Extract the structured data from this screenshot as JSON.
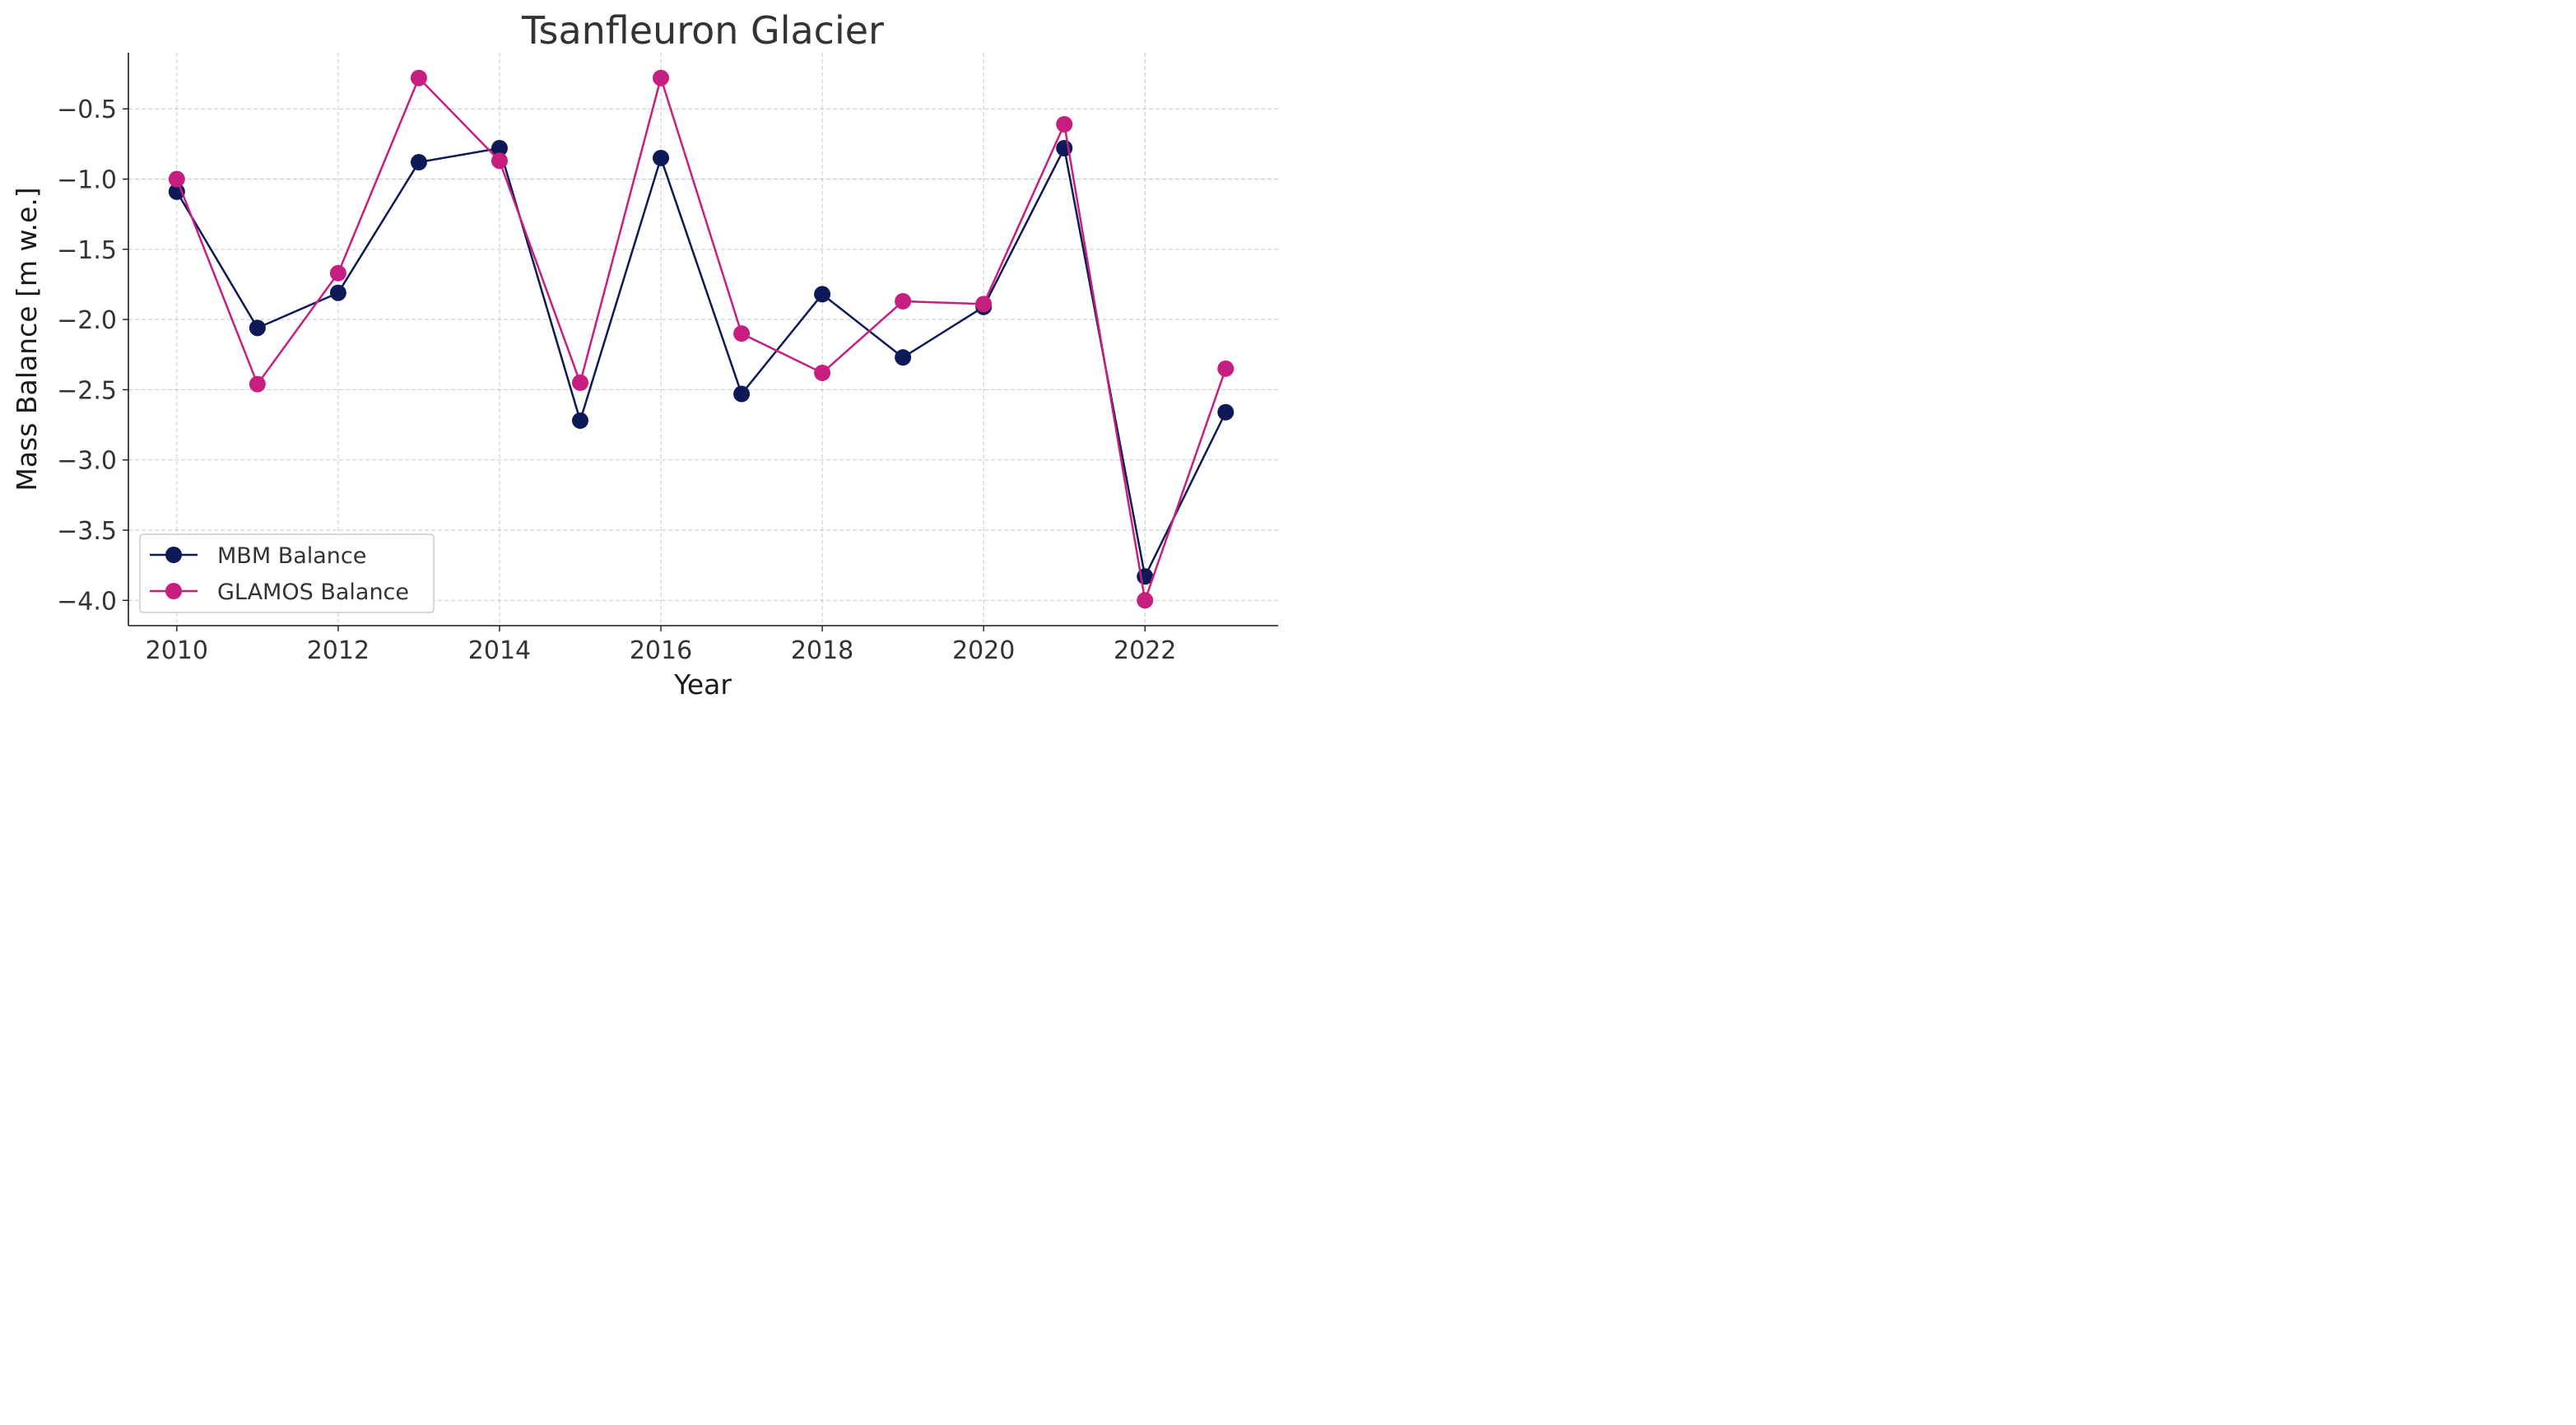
{
  "chart_data": {
    "type": "line",
    "title": "Tsanfleuron Glacier",
    "xlabel": "Year",
    "ylabel": "Mass Balance [m w.e.]",
    "x": [
      2010,
      2011,
      2012,
      2013,
      2014,
      2015,
      2016,
      2017,
      2018,
      2019,
      2020,
      2021,
      2022,
      2023
    ],
    "xlim": [
      2009.4,
      2023.65
    ],
    "ylim": [
      -4.18,
      -0.1
    ],
    "xticks": [
      2010,
      2012,
      2014,
      2016,
      2018,
      2020,
      2022
    ],
    "xtick_labels": [
      "2010",
      "2012",
      "2014",
      "2016",
      "2018",
      "2020",
      "2022"
    ],
    "yticks": [
      -4.0,
      -3.5,
      -3.0,
      -2.5,
      -2.0,
      -1.5,
      -1.0,
      -0.5
    ],
    "ytick_labels": [
      "−4.0",
      "−3.5",
      "−3.0",
      "−2.5",
      "−2.0",
      "−1.5",
      "−1.0",
      "−0.5"
    ],
    "grid": true,
    "legend_position": "lower-left",
    "series": [
      {
        "name": "MBM Balance",
        "color": "#0d1a57",
        "marker": "circle",
        "values": [
          -1.09,
          -2.06,
          -1.81,
          -0.88,
          -0.78,
          -2.72,
          -0.85,
          -2.53,
          -1.82,
          -2.27,
          -1.91,
          -0.78,
          -3.83,
          -2.66
        ]
      },
      {
        "name": "GLAMOS Balance",
        "color": "#c71f80",
        "marker": "circle",
        "values": [
          -1.0,
          -2.46,
          -1.67,
          -0.28,
          -0.87,
          -2.45,
          -0.28,
          -2.1,
          -2.38,
          -1.87,
          -1.89,
          -0.61,
          -4.0,
          -2.35
        ]
      }
    ]
  }
}
